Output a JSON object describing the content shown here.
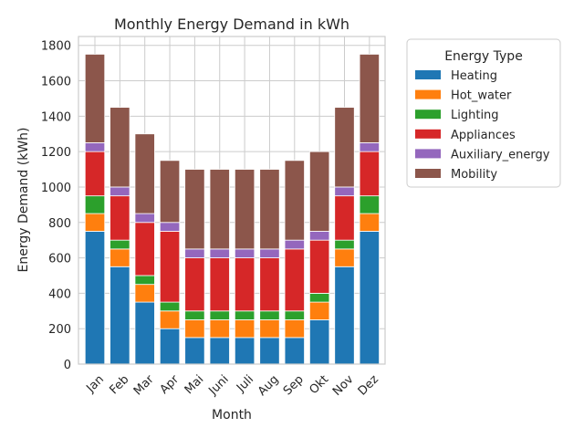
{
  "chart_data": {
    "type": "bar",
    "stacked": true,
    "title": "Monthly Energy Demand in kWh",
    "xlabel": "Month",
    "ylabel": "Energy Demand (kWh)",
    "ylim": [
      0,
      1850
    ],
    "yticks": [
      0,
      200,
      400,
      600,
      800,
      1000,
      1200,
      1400,
      1600,
      1800
    ],
    "grid": true,
    "legend_title": "Energy Type",
    "legend_position": "outside-right",
    "categories": [
      "Jan",
      "Feb",
      "Mar",
      "Apr",
      "Mai",
      "Juni",
      "Juli",
      "Aug",
      "Sep",
      "Okt",
      "Nov",
      "Dez"
    ],
    "series": [
      {
        "name": "Heating",
        "color": "#1f77b4",
        "values": [
          750,
          550,
          350,
          200,
          150,
          150,
          150,
          150,
          150,
          250,
          550,
          750
        ]
      },
      {
        "name": "Hot_water",
        "color": "#ff7f0e",
        "values": [
          100,
          100,
          100,
          100,
          100,
          100,
          100,
          100,
          100,
          100,
          100,
          100
        ]
      },
      {
        "name": "Lighting",
        "color": "#2ca02c",
        "values": [
          100,
          50,
          50,
          50,
          50,
          50,
          50,
          50,
          50,
          50,
          50,
          100
        ]
      },
      {
        "name": "Appliances",
        "color": "#d62728",
        "values": [
          250,
          250,
          300,
          400,
          300,
          300,
          300,
          300,
          350,
          300,
          250,
          250
        ]
      },
      {
        "name": "Auxiliary_energy",
        "color": "#9467bd",
        "values": [
          50,
          50,
          50,
          50,
          50,
          50,
          50,
          50,
          50,
          50,
          50,
          50
        ]
      },
      {
        "name": "Mobility",
        "color": "#8c564b",
        "values": [
          500,
          450,
          450,
          350,
          450,
          450,
          450,
          450,
          450,
          450,
          450,
          500
        ]
      }
    ]
  }
}
